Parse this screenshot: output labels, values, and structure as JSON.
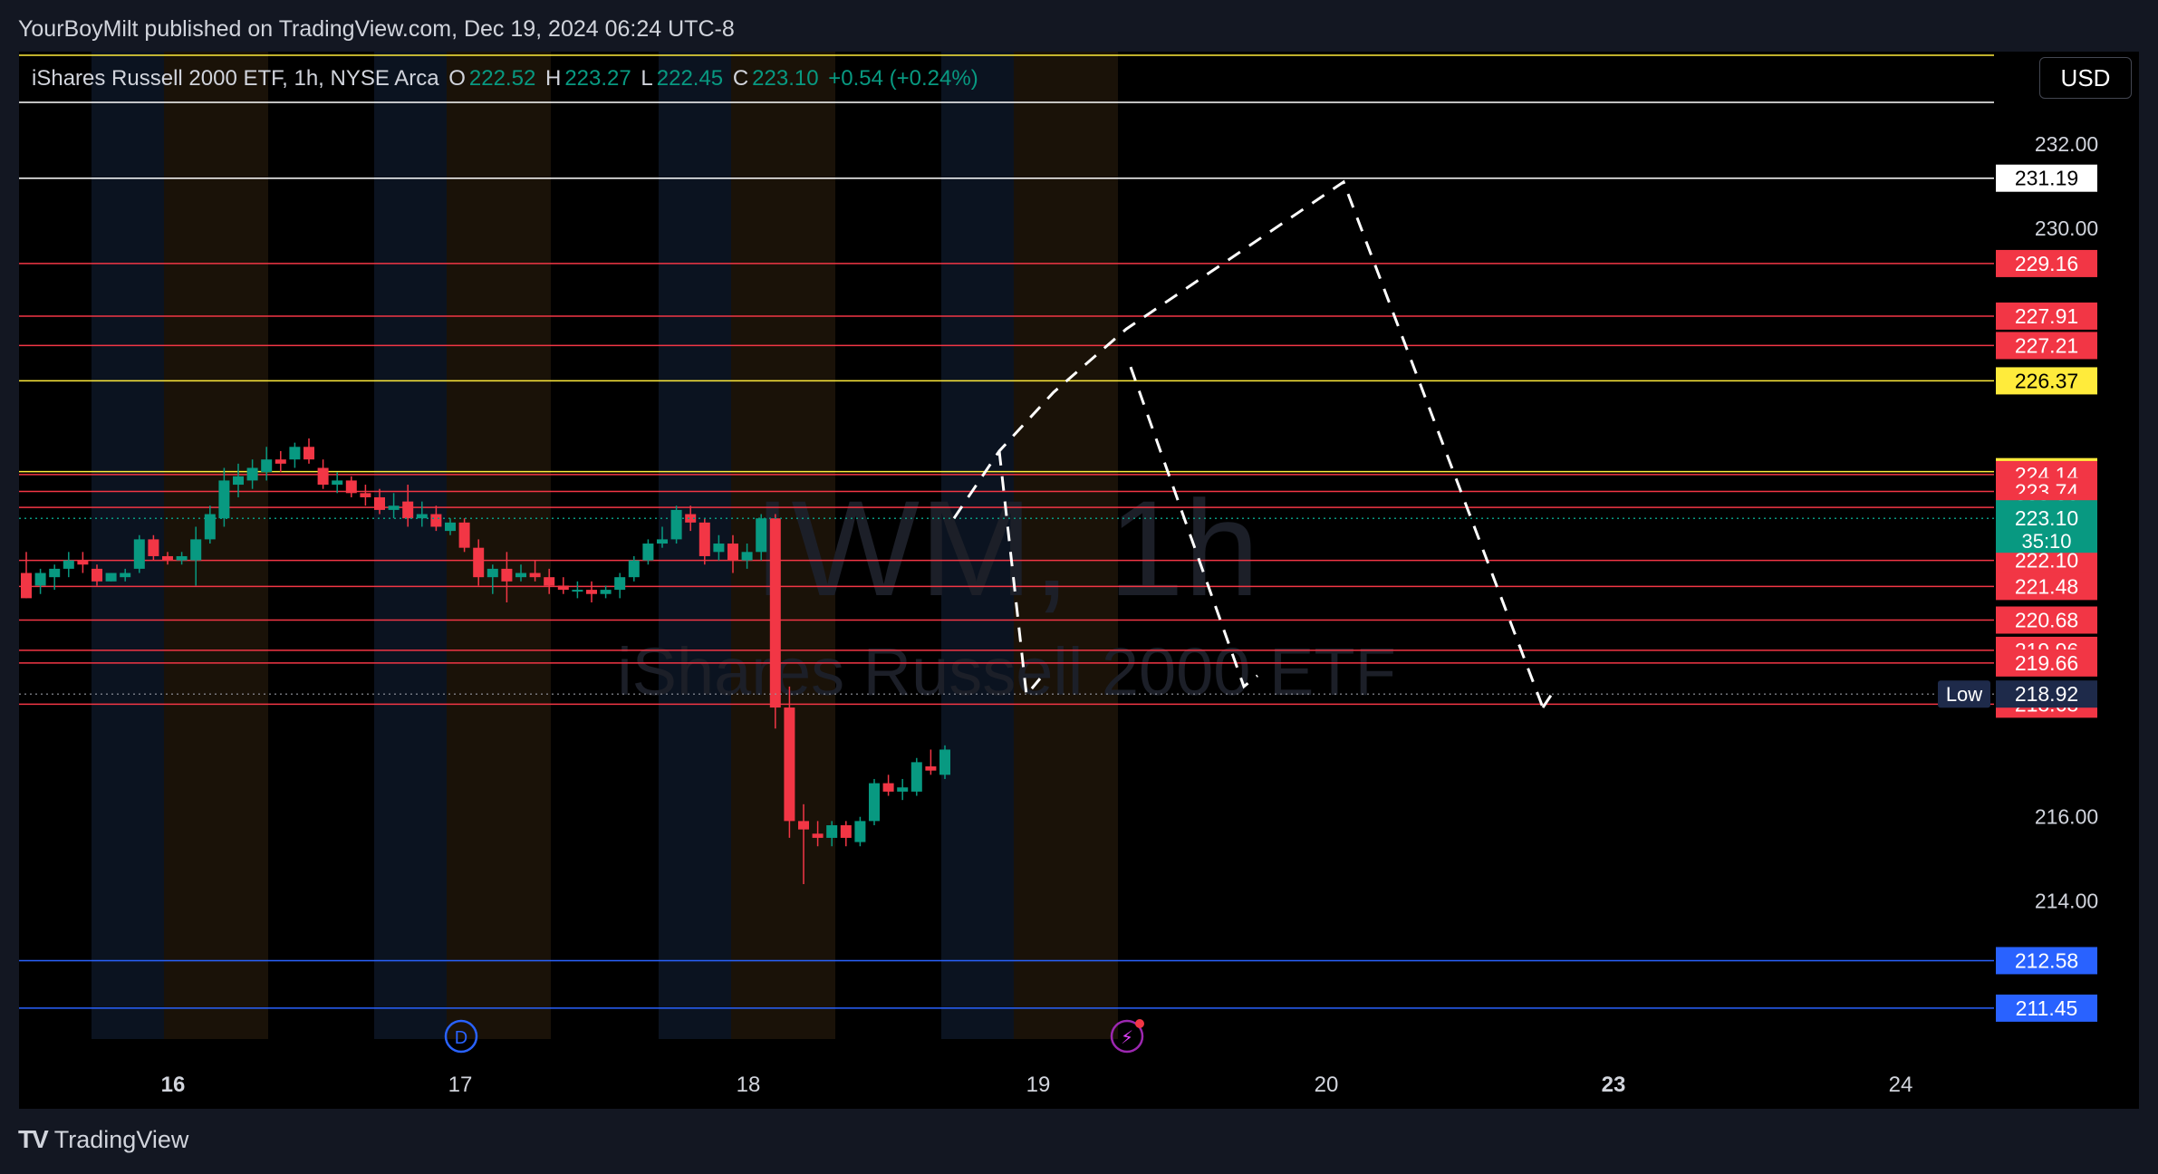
{
  "header": {
    "published_line": "YourBoyMilt published on TradingView.com, Dec 19, 2024 06:24 UTC-8"
  },
  "legend": {
    "symbol_line": "iShares Russell 2000 ETF, 1h, NYSE Arca",
    "o_key": "O",
    "o_value": "222.52",
    "h_key": "H",
    "h_value": "223.27",
    "l_key": "L",
    "l_value": "222.45",
    "c_key": "C",
    "c_value": "223.10",
    "change": "+0.54 (+0.24%)"
  },
  "currency_button": "USD",
  "watermark": {
    "ticker": "IWM, 1h",
    "name": "iShares Russell 2000 ETF"
  },
  "footer": {
    "brand": "TradingView"
  },
  "colors": {
    "bull": "#089981",
    "bear": "#f23645",
    "level_red": "#f23645",
    "level_yellow": "#ffeb3b",
    "level_white": "#ffffff",
    "level_blue": "#2962ff"
  },
  "chart_data": {
    "type": "candlestick",
    "symbol": "IWM",
    "interval": "1h",
    "ylim": [
      210.5,
      234.2
    ],
    "price_ticks": [
      "232.00",
      "230.00",
      "216.00",
      "214.00"
    ],
    "x_tick_labels": [
      "16",
      "17",
      "18",
      "19",
      "20",
      "23",
      "24"
    ],
    "session_marker_labels": [
      "D"
    ],
    "candles": [
      {
        "o": 221.8,
        "h": 222.3,
        "l": 221.2,
        "c": 221.2
      },
      {
        "o": 221.5,
        "h": 221.9,
        "l": 221.3,
        "c": 221.8
      },
      {
        "o": 221.7,
        "h": 222.0,
        "l": 221.4,
        "c": 221.9
      },
      {
        "o": 221.9,
        "h": 222.3,
        "l": 221.7,
        "c": 222.1
      },
      {
        "o": 222.1,
        "h": 222.3,
        "l": 221.8,
        "c": 222.0
      },
      {
        "o": 221.9,
        "h": 222.0,
        "l": 221.5,
        "c": 221.6
      },
      {
        "o": 221.6,
        "h": 221.8,
        "l": 221.6,
        "c": 221.8
      },
      {
        "o": 221.7,
        "h": 221.9,
        "l": 221.6,
        "c": 221.8
      },
      {
        "o": 221.9,
        "h": 222.7,
        "l": 221.8,
        "c": 222.6
      },
      {
        "o": 222.6,
        "h": 222.7,
        "l": 222.1,
        "c": 222.2
      },
      {
        "o": 222.2,
        "h": 222.3,
        "l": 222.0,
        "c": 222.1
      },
      {
        "o": 222.1,
        "h": 222.3,
        "l": 222.0,
        "c": 222.2
      },
      {
        "o": 222.1,
        "h": 222.9,
        "l": 221.5,
        "c": 222.6
      },
      {
        "o": 222.6,
        "h": 223.4,
        "l": 222.5,
        "c": 223.2
      },
      {
        "o": 223.1,
        "h": 224.3,
        "l": 222.9,
        "c": 224.0
      },
      {
        "o": 223.9,
        "h": 224.4,
        "l": 223.6,
        "c": 224.1
      },
      {
        "o": 224.0,
        "h": 224.5,
        "l": 223.8,
        "c": 224.3
      },
      {
        "o": 224.2,
        "h": 224.8,
        "l": 224.0,
        "c": 224.5
      },
      {
        "o": 224.5,
        "h": 224.7,
        "l": 224.2,
        "c": 224.4
      },
      {
        "o": 224.5,
        "h": 224.9,
        "l": 224.3,
        "c": 224.8
      },
      {
        "o": 224.8,
        "h": 225.0,
        "l": 224.4,
        "c": 224.5
      },
      {
        "o": 224.3,
        "h": 224.5,
        "l": 223.8,
        "c": 223.9
      },
      {
        "o": 223.9,
        "h": 224.2,
        "l": 223.7,
        "c": 224.0
      },
      {
        "o": 224.0,
        "h": 224.1,
        "l": 223.6,
        "c": 223.7
      },
      {
        "o": 223.7,
        "h": 223.9,
        "l": 223.4,
        "c": 223.6
      },
      {
        "o": 223.6,
        "h": 223.8,
        "l": 223.2,
        "c": 223.3
      },
      {
        "o": 223.3,
        "h": 223.7,
        "l": 223.1,
        "c": 223.4
      },
      {
        "o": 223.5,
        "h": 223.9,
        "l": 222.9,
        "c": 223.1
      },
      {
        "o": 223.1,
        "h": 223.5,
        "l": 222.9,
        "c": 223.2
      },
      {
        "o": 223.2,
        "h": 223.4,
        "l": 222.8,
        "c": 222.9
      },
      {
        "o": 222.8,
        "h": 223.1,
        "l": 222.7,
        "c": 223.0
      },
      {
        "o": 223.0,
        "h": 223.1,
        "l": 222.3,
        "c": 222.4
      },
      {
        "o": 222.4,
        "h": 222.6,
        "l": 221.5,
        "c": 221.7
      },
      {
        "o": 221.7,
        "h": 222.0,
        "l": 221.3,
        "c": 221.9
      },
      {
        "o": 221.9,
        "h": 222.3,
        "l": 221.1,
        "c": 221.6
      },
      {
        "o": 221.7,
        "h": 222.0,
        "l": 221.6,
        "c": 221.8
      },
      {
        "o": 221.8,
        "h": 222.1,
        "l": 221.6,
        "c": 221.7
      },
      {
        "o": 221.7,
        "h": 221.9,
        "l": 221.3,
        "c": 221.5
      },
      {
        "o": 221.5,
        "h": 221.7,
        "l": 221.3,
        "c": 221.4
      },
      {
        "o": 221.4,
        "h": 221.6,
        "l": 221.2,
        "c": 221.4
      },
      {
        "o": 221.4,
        "h": 221.6,
        "l": 221.1,
        "c": 221.3
      },
      {
        "o": 221.3,
        "h": 221.5,
        "l": 221.2,
        "c": 221.4
      },
      {
        "o": 221.4,
        "h": 221.8,
        "l": 221.2,
        "c": 221.7
      },
      {
        "o": 221.7,
        "h": 222.2,
        "l": 221.6,
        "c": 222.1
      },
      {
        "o": 222.1,
        "h": 222.6,
        "l": 222.0,
        "c": 222.5
      },
      {
        "o": 222.5,
        "h": 222.9,
        "l": 222.4,
        "c": 222.6
      },
      {
        "o": 222.6,
        "h": 223.4,
        "l": 222.5,
        "c": 223.3
      },
      {
        "o": 223.2,
        "h": 223.4,
        "l": 222.8,
        "c": 223.0
      },
      {
        "o": 223.0,
        "h": 223.1,
        "l": 222.0,
        "c": 222.2
      },
      {
        "o": 222.3,
        "h": 222.7,
        "l": 222.1,
        "c": 222.5
      },
      {
        "o": 222.5,
        "h": 222.7,
        "l": 221.8,
        "c": 222.1
      },
      {
        "o": 222.1,
        "h": 222.5,
        "l": 221.9,
        "c": 222.3
      },
      {
        "o": 222.3,
        "h": 223.2,
        "l": 222.1,
        "c": 223.1
      },
      {
        "o": 223.1,
        "h": 223.2,
        "l": 218.1,
        "c": 218.6
      },
      {
        "o": 218.6,
        "h": 219.1,
        "l": 215.5,
        "c": 215.9
      },
      {
        "o": 215.9,
        "h": 216.3,
        "l": 214.4,
        "c": 215.7
      },
      {
        "o": 215.6,
        "h": 215.9,
        "l": 215.3,
        "c": 215.5
      },
      {
        "o": 215.5,
        "h": 215.9,
        "l": 215.3,
        "c": 215.8
      },
      {
        "o": 215.8,
        "h": 215.9,
        "l": 215.3,
        "c": 215.5
      },
      {
        "o": 215.4,
        "h": 216.0,
        "l": 215.3,
        "c": 215.9
      },
      {
        "o": 215.9,
        "h": 216.9,
        "l": 215.8,
        "c": 216.8
      },
      {
        "o": 216.8,
        "h": 217.0,
        "l": 216.5,
        "c": 216.6
      },
      {
        "o": 216.6,
        "h": 216.9,
        "l": 216.4,
        "c": 216.7
      },
      {
        "o": 216.6,
        "h": 217.4,
        "l": 216.5,
        "c": 217.3
      },
      {
        "o": 217.2,
        "h": 217.6,
        "l": 217.0,
        "c": 217.1
      },
      {
        "o": 217.0,
        "h": 217.7,
        "l": 216.9,
        "c": 217.6
      }
    ],
    "horizontal_levels": [
      {
        "label": "231.19",
        "color": "white"
      },
      {
        "label": "229.16",
        "color": "red"
      },
      {
        "label": "227.91",
        "color": "red"
      },
      {
        "label": "227.21",
        "color": "red"
      },
      {
        "label": "226.37",
        "color": "yellow"
      },
      {
        "label": "224.21",
        "color": "yellow"
      },
      {
        "label": "224.14",
        "color": "red"
      },
      {
        "label": "223.74",
        "color": "red"
      },
      {
        "label": "223.36",
        "color": "red"
      },
      {
        "label": "222.10",
        "color": "red"
      },
      {
        "label": "221.48",
        "color": "red"
      },
      {
        "label": "220.68",
        "color": "red"
      },
      {
        "label": "219.96",
        "color": "red"
      },
      {
        "label": "219.66",
        "color": "red"
      },
      {
        "label": "218.68",
        "color": "red"
      },
      {
        "label": "212.58",
        "color": "blue"
      },
      {
        "label": "211.45",
        "color": "blue"
      }
    ],
    "current_price": {
      "label": "223.10",
      "countdown": "35:10"
    },
    "low_marker": {
      "label": "Low",
      "value": "218.92"
    },
    "projection_path_prices": [
      223.1,
      224.7,
      226.1,
      227.6,
      231.1,
      218.6
    ],
    "projection_secondary": [
      227.4,
      218.9
    ],
    "projection_tertiary": [
      226.7,
      219.1
    ]
  }
}
